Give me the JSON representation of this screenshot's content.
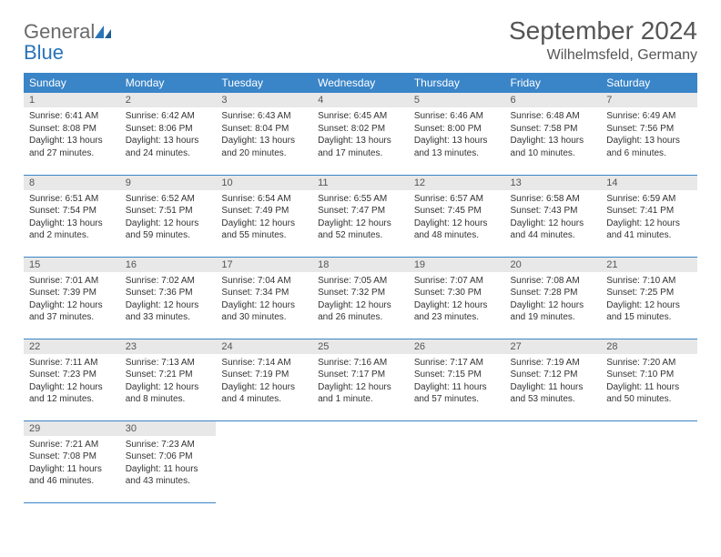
{
  "logo": {
    "text1": "General",
    "text2": "Blue"
  },
  "title": "September 2024",
  "location": "Wilhelmsfeld, Germany",
  "colors": {
    "header_bg": "#3a85c8",
    "header_text": "#ffffff",
    "daynum_bg": "#e8e8e8",
    "border": "#3a85c8",
    "logo_gray": "#6a6a6a",
    "logo_blue": "#2a74b8"
  },
  "typography": {
    "title_fontsize": 28,
    "location_fontsize": 16,
    "header_fontsize": 12,
    "body_fontsize": 10
  },
  "day_headers": [
    "Sunday",
    "Monday",
    "Tuesday",
    "Wednesday",
    "Thursday",
    "Friday",
    "Saturday"
  ],
  "weeks": [
    [
      {
        "n": "1",
        "sr": "Sunrise: 6:41 AM",
        "ss": "Sunset: 8:08 PM",
        "d1": "Daylight: 13 hours",
        "d2": "and 27 minutes."
      },
      {
        "n": "2",
        "sr": "Sunrise: 6:42 AM",
        "ss": "Sunset: 8:06 PM",
        "d1": "Daylight: 13 hours",
        "d2": "and 24 minutes."
      },
      {
        "n": "3",
        "sr": "Sunrise: 6:43 AM",
        "ss": "Sunset: 8:04 PM",
        "d1": "Daylight: 13 hours",
        "d2": "and 20 minutes."
      },
      {
        "n": "4",
        "sr": "Sunrise: 6:45 AM",
        "ss": "Sunset: 8:02 PM",
        "d1": "Daylight: 13 hours",
        "d2": "and 17 minutes."
      },
      {
        "n": "5",
        "sr": "Sunrise: 6:46 AM",
        "ss": "Sunset: 8:00 PM",
        "d1": "Daylight: 13 hours",
        "d2": "and 13 minutes."
      },
      {
        "n": "6",
        "sr": "Sunrise: 6:48 AM",
        "ss": "Sunset: 7:58 PM",
        "d1": "Daylight: 13 hours",
        "d2": "and 10 minutes."
      },
      {
        "n": "7",
        "sr": "Sunrise: 6:49 AM",
        "ss": "Sunset: 7:56 PM",
        "d1": "Daylight: 13 hours",
        "d2": "and 6 minutes."
      }
    ],
    [
      {
        "n": "8",
        "sr": "Sunrise: 6:51 AM",
        "ss": "Sunset: 7:54 PM",
        "d1": "Daylight: 13 hours",
        "d2": "and 2 minutes."
      },
      {
        "n": "9",
        "sr": "Sunrise: 6:52 AM",
        "ss": "Sunset: 7:51 PM",
        "d1": "Daylight: 12 hours",
        "d2": "and 59 minutes."
      },
      {
        "n": "10",
        "sr": "Sunrise: 6:54 AM",
        "ss": "Sunset: 7:49 PM",
        "d1": "Daylight: 12 hours",
        "d2": "and 55 minutes."
      },
      {
        "n": "11",
        "sr": "Sunrise: 6:55 AM",
        "ss": "Sunset: 7:47 PM",
        "d1": "Daylight: 12 hours",
        "d2": "and 52 minutes."
      },
      {
        "n": "12",
        "sr": "Sunrise: 6:57 AM",
        "ss": "Sunset: 7:45 PM",
        "d1": "Daylight: 12 hours",
        "d2": "and 48 minutes."
      },
      {
        "n": "13",
        "sr": "Sunrise: 6:58 AM",
        "ss": "Sunset: 7:43 PM",
        "d1": "Daylight: 12 hours",
        "d2": "and 44 minutes."
      },
      {
        "n": "14",
        "sr": "Sunrise: 6:59 AM",
        "ss": "Sunset: 7:41 PM",
        "d1": "Daylight: 12 hours",
        "d2": "and 41 minutes."
      }
    ],
    [
      {
        "n": "15",
        "sr": "Sunrise: 7:01 AM",
        "ss": "Sunset: 7:39 PM",
        "d1": "Daylight: 12 hours",
        "d2": "and 37 minutes."
      },
      {
        "n": "16",
        "sr": "Sunrise: 7:02 AM",
        "ss": "Sunset: 7:36 PM",
        "d1": "Daylight: 12 hours",
        "d2": "and 33 minutes."
      },
      {
        "n": "17",
        "sr": "Sunrise: 7:04 AM",
        "ss": "Sunset: 7:34 PM",
        "d1": "Daylight: 12 hours",
        "d2": "and 30 minutes."
      },
      {
        "n": "18",
        "sr": "Sunrise: 7:05 AM",
        "ss": "Sunset: 7:32 PM",
        "d1": "Daylight: 12 hours",
        "d2": "and 26 minutes."
      },
      {
        "n": "19",
        "sr": "Sunrise: 7:07 AM",
        "ss": "Sunset: 7:30 PM",
        "d1": "Daylight: 12 hours",
        "d2": "and 23 minutes."
      },
      {
        "n": "20",
        "sr": "Sunrise: 7:08 AM",
        "ss": "Sunset: 7:28 PM",
        "d1": "Daylight: 12 hours",
        "d2": "and 19 minutes."
      },
      {
        "n": "21",
        "sr": "Sunrise: 7:10 AM",
        "ss": "Sunset: 7:25 PM",
        "d1": "Daylight: 12 hours",
        "d2": "and 15 minutes."
      }
    ],
    [
      {
        "n": "22",
        "sr": "Sunrise: 7:11 AM",
        "ss": "Sunset: 7:23 PM",
        "d1": "Daylight: 12 hours",
        "d2": "and 12 minutes."
      },
      {
        "n": "23",
        "sr": "Sunrise: 7:13 AM",
        "ss": "Sunset: 7:21 PM",
        "d1": "Daylight: 12 hours",
        "d2": "and 8 minutes."
      },
      {
        "n": "24",
        "sr": "Sunrise: 7:14 AM",
        "ss": "Sunset: 7:19 PM",
        "d1": "Daylight: 12 hours",
        "d2": "and 4 minutes."
      },
      {
        "n": "25",
        "sr": "Sunrise: 7:16 AM",
        "ss": "Sunset: 7:17 PM",
        "d1": "Daylight: 12 hours",
        "d2": "and 1 minute."
      },
      {
        "n": "26",
        "sr": "Sunrise: 7:17 AM",
        "ss": "Sunset: 7:15 PM",
        "d1": "Daylight: 11 hours",
        "d2": "and 57 minutes."
      },
      {
        "n": "27",
        "sr": "Sunrise: 7:19 AM",
        "ss": "Sunset: 7:12 PM",
        "d1": "Daylight: 11 hours",
        "d2": "and 53 minutes."
      },
      {
        "n": "28",
        "sr": "Sunrise: 7:20 AM",
        "ss": "Sunset: 7:10 PM",
        "d1": "Daylight: 11 hours",
        "d2": "and 50 minutes."
      }
    ],
    [
      {
        "n": "29",
        "sr": "Sunrise: 7:21 AM",
        "ss": "Sunset: 7:08 PM",
        "d1": "Daylight: 11 hours",
        "d2": "and 46 minutes."
      },
      {
        "n": "30",
        "sr": "Sunrise: 7:23 AM",
        "ss": "Sunset: 7:06 PM",
        "d1": "Daylight: 11 hours",
        "d2": "and 43 minutes."
      },
      null,
      null,
      null,
      null,
      null
    ]
  ]
}
